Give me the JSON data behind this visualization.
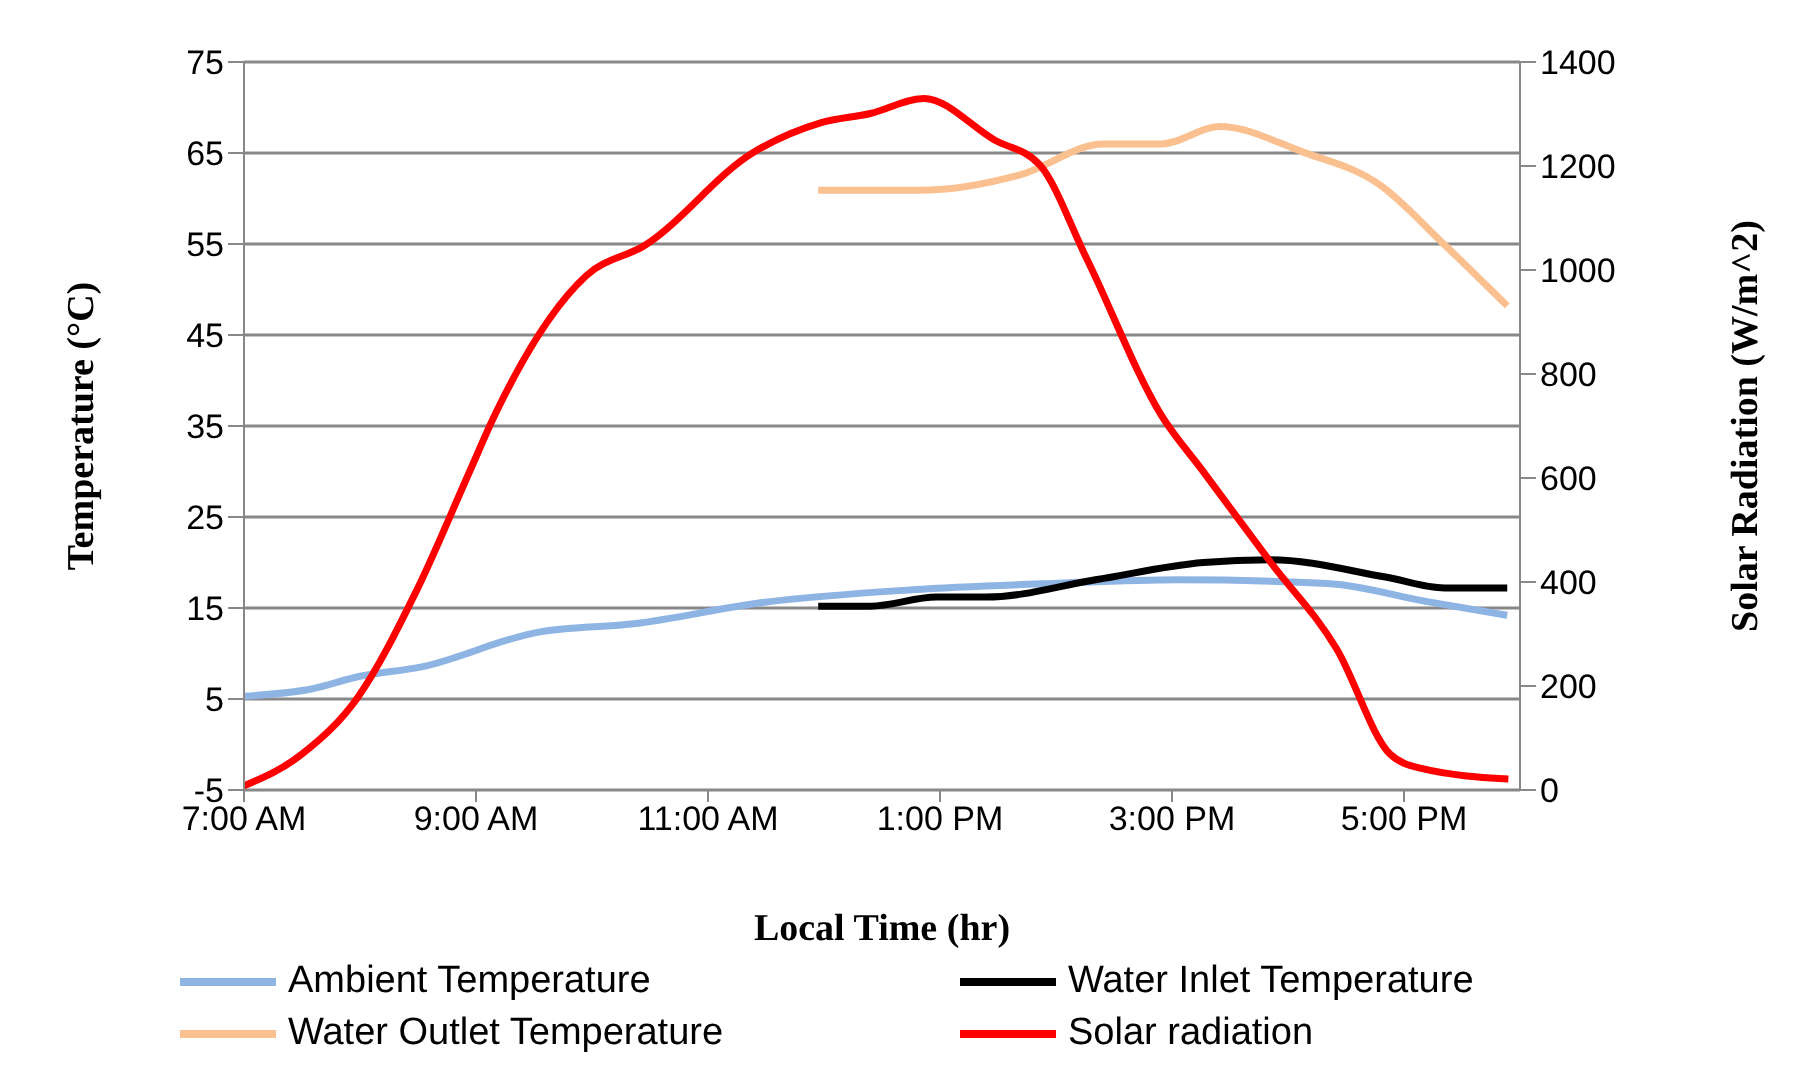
{
  "chart_data": {
    "type": "line",
    "xlabel": "Local Time (hr)",
    "ylabel": "Temperature (°C)",
    "y2label": "Solar Radiation (W/m^2)",
    "xlim": [
      7,
      18
    ],
    "xticks": [
      {
        "value": 7,
        "label": "7:00 AM"
      },
      {
        "value": 9,
        "label": "9:00 AM"
      },
      {
        "value": 11,
        "label": "11:00 AM"
      },
      {
        "value": 13,
        "label": "1:00 PM"
      },
      {
        "value": 15,
        "label": "3:00 PM"
      },
      {
        "value": 17,
        "label": "5:00 PM"
      }
    ],
    "ylim": [
      -5,
      75
    ],
    "yticks": [
      -5,
      5,
      15,
      25,
      35,
      45,
      55,
      65,
      75
    ],
    "y2lim": [
      0,
      1400
    ],
    "y2ticks": [
      0,
      200,
      400,
      600,
      800,
      1000,
      1200,
      1400
    ],
    "grid": "y",
    "legend": "bottom",
    "marker": "none",
    "line_style": "solid",
    "series": [
      {
        "name": "Ambient Temperature",
        "color": "#8eb4e3",
        "x": [
          7,
          7.58,
          8,
          8.52,
          9.52,
          10.38,
          11.47,
          12.76,
          13.98,
          15.05,
          16.34,
          17.2,
          17.89
        ],
        "values": [
          5.3,
          6.1,
          7.5,
          8.5,
          12.3,
          13.3,
          15.6,
          17,
          17.7,
          18.1,
          17.7,
          15.7,
          14.2
        ]
      },
      {
        "name": "Water Inlet Temperature",
        "color": "#000000",
        "x": [
          11.95,
          12.4,
          12.97,
          13.4,
          14.34,
          15.27,
          15.85,
          16.84,
          17.35,
          17.89
        ],
        "values": [
          15.2,
          15.2,
          16.2,
          16.2,
          18.1,
          20,
          20.3,
          18.4,
          17.2,
          17.2
        ]
      },
      {
        "name": "Water Outlet Temperature",
        "color": "#fac090",
        "x": [
          11.95,
          12.83,
          13.69,
          14.41,
          14.91,
          15.41,
          16.13,
          16.78,
          17.35,
          17.89
        ],
        "values": [
          60.9,
          60.9,
          62.6,
          66,
          66,
          67.9,
          65.1,
          61.6,
          54.9,
          48.2
        ]
      },
      {
        "name": "Solar radiation",
        "color": "#ff0000",
        "axis": "y2",
        "x": [
          7,
          7.5,
          7.98,
          8.48,
          8.95,
          9.16,
          9.95,
          10.46,
          11.39,
          11.97,
          12.4,
          12.86,
          13.47,
          13.86,
          14.26,
          14.91,
          15.26,
          15.85,
          16.42,
          16.88,
          17.14,
          17.9
        ],
        "values": [
          8,
          69,
          178,
          380,
          615,
          720,
          989,
          1048,
          1226,
          1283,
          1301,
          1330,
          1250,
          1202,
          1024,
          720,
          615,
          438,
          271,
          69,
          42,
          21
        ]
      }
    ]
  }
}
